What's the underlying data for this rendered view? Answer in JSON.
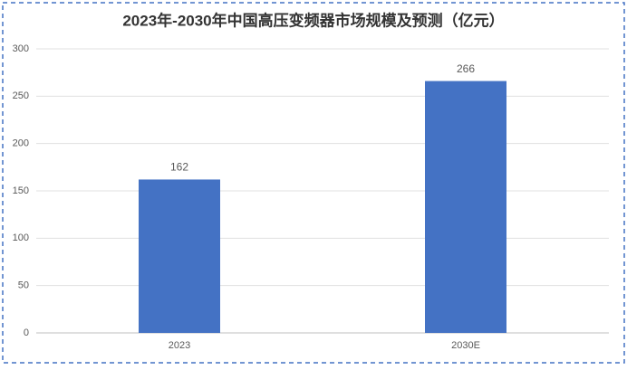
{
  "chart_data": {
    "type": "bar",
    "title": "2023年-2030年中国高压变频器市场规模及预测（亿元）",
    "categories": [
      "2023",
      "2030E"
    ],
    "values": [
      162,
      266
    ],
    "color": "#4472c4",
    "ylim": [
      0,
      300
    ],
    "yticks": [
      0,
      50,
      100,
      150,
      200,
      250,
      300
    ],
    "grid": true
  }
}
